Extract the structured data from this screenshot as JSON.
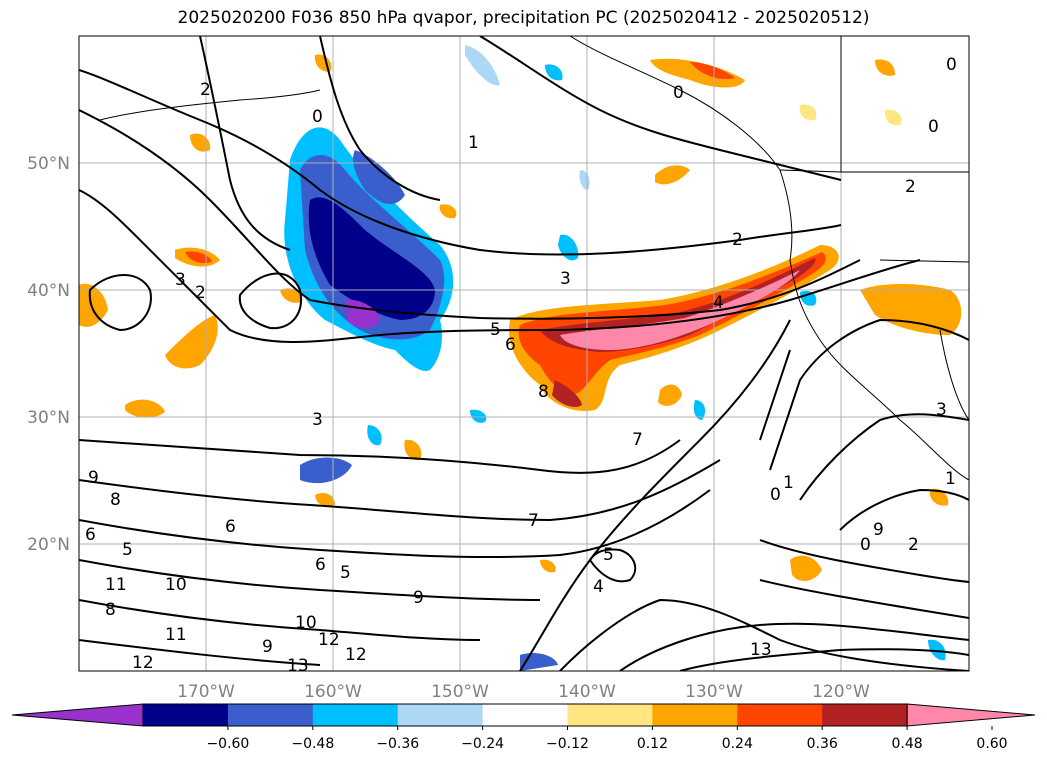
{
  "title": "2025020200 F036 850 hPa qvapor, precipitation PC (2025020412 - 2025020512)",
  "map": {
    "lat_ticks": [
      "50°N",
      "40°N",
      "30°N",
      "20°N"
    ],
    "lon_ticks": [
      "170°W",
      "160°W",
      "150°W",
      "140°W",
      "130°W",
      "120°W"
    ],
    "extent": {
      "lon_min": -180,
      "lon_max": -110,
      "lat_min": 10,
      "lat_max": 60
    },
    "gridlines": true
  },
  "colorbar": {
    "ticks": [
      "−0.60",
      "−0.48",
      "−0.36",
      "−0.24",
      "−0.12",
      "0.12",
      "0.24",
      "0.36",
      "0.48",
      "0.60"
    ],
    "colors": [
      "#9932cc",
      "#00008b",
      "#3a5fcd",
      "#00bfff",
      "#add8f5",
      "#ffffff",
      "#ffe680",
      "#ffa500",
      "#ff4500",
      "#b22222",
      "#ff88aa"
    ],
    "extend": "both"
  },
  "contours": {
    "labels": [
      "2",
      "0",
      "3",
      "2",
      "3",
      "4",
      "5",
      "6",
      "8",
      "1",
      "3",
      "2",
      "0",
      "7",
      "9",
      "8",
      "6",
      "5",
      "11",
      "10",
      "13",
      "12",
      "4",
      "5",
      "6",
      "7",
      "0",
      "1",
      "2",
      "0",
      "9",
      "3",
      "0",
      "12",
      "10",
      "11",
      "9",
      "8",
      "13",
      "12",
      "6",
      "5",
      "9",
      "1",
      "2",
      "0"
    ]
  }
}
